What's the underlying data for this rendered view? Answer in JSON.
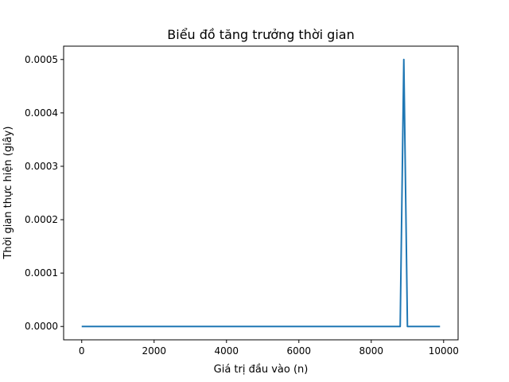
{
  "chart_data": {
    "type": "line",
    "title": "Biểu đồ tăng trưởng thời gian",
    "xlabel": "Giá trị đầu vào (n)",
    "ylabel": "Thời gian thực hiện (giây)",
    "xlim": [
      -500,
      10400
    ],
    "ylim": [
      -2.5e-05,
      0.000525
    ],
    "xticks": [
      0,
      2000,
      4000,
      6000,
      8000,
      10000
    ],
    "yticks": [
      0.0,
      0.0001,
      0.0002,
      0.0003,
      0.0004,
      0.0005
    ],
    "xtick_labels": [
      "0",
      "2000",
      "4000",
      "6000",
      "8000",
      "10000"
    ],
    "ytick_labels": [
      "0.0000",
      "0.0001",
      "0.0002",
      "0.0003",
      "0.0004",
      "0.0005"
    ],
    "grid": false,
    "series": [
      {
        "color": "#1f77b4",
        "x": [
          0,
          8800,
          8900,
          9000,
          9900
        ],
        "y": [
          0,
          0,
          0.0005,
          0,
          0
        ]
      }
    ]
  }
}
